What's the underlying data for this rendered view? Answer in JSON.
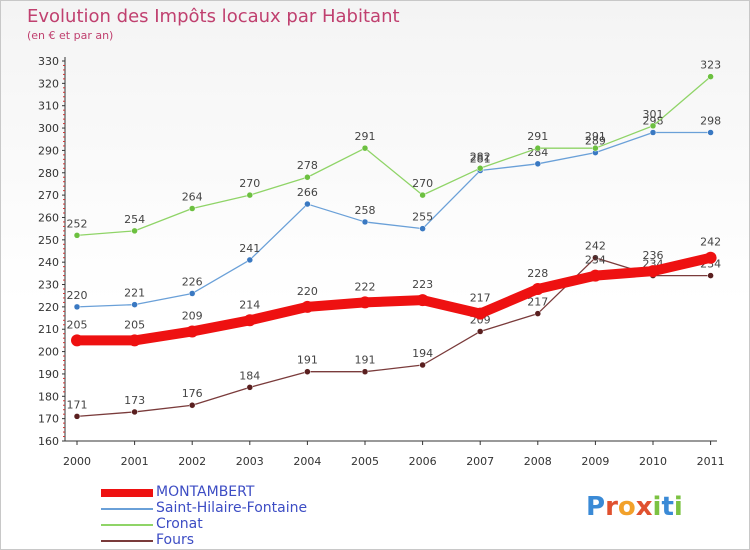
{
  "header": {
    "title": "Evolution des Impôts locaux par Habitant",
    "subtitle": "(en € et par an)"
  },
  "logo": {
    "text": "Proxiti",
    "letters": [
      "P",
      "r",
      "o",
      "x",
      "i",
      "t",
      "i"
    ],
    "colors": [
      "#3a8ad6",
      "#e0512f",
      "#f2a12a",
      "#e0512f",
      "#7cc242",
      "#3a8ad6",
      "#7cc242"
    ]
  },
  "chart_data": {
    "type": "line",
    "title": "Evolution des Impôts locaux par Habitant",
    "subtitle": "(en € et par an)",
    "xlabel": "",
    "ylabel": "",
    "categories": [
      "2000",
      "2001",
      "2002",
      "2003",
      "2004",
      "2005",
      "2006",
      "2007",
      "2008",
      "2009",
      "2010",
      "2011"
    ],
    "ylim": [
      160,
      330
    ],
    "yticks": [
      160,
      170,
      180,
      190,
      200,
      210,
      220,
      230,
      240,
      250,
      260,
      270,
      280,
      290,
      300,
      310,
      320,
      330
    ],
    "grid": false,
    "legend_position": "bottom-left",
    "series": [
      {
        "name": "MONTAMBERT",
        "color": "#ee1111",
        "thick": true,
        "values": [
          205,
          205,
          209,
          214,
          220,
          222,
          223,
          217,
          228,
          234,
          236,
          242
        ],
        "labels": [
          "205",
          "205",
          "209",
          "214",
          "220",
          "222",
          "223",
          "217",
          "228",
          "234",
          "236",
          "242"
        ]
      },
      {
        "name": "Saint-Hilaire-Fontaine",
        "color": "#6aa0d8",
        "marker": "#3a79c2",
        "thick": false,
        "values": [
          220,
          221,
          226,
          241,
          266,
          258,
          255,
          281,
          284,
          289,
          298,
          298
        ],
        "labels": [
          "220",
          "221",
          "226",
          "241",
          "266",
          "258",
          "255",
          "281",
          "284",
          "289",
          "298",
          "298"
        ]
      },
      {
        "name": "Cronat",
        "color": "#8fd467",
        "marker": "#6cc040",
        "thick": false,
        "values": [
          252,
          254,
          264,
          270,
          278,
          291,
          270,
          282,
          291,
          291,
          301,
          323
        ],
        "labels": [
          "252",
          "254",
          "264",
          "270",
          "278",
          "291",
          "270",
          "282",
          "291",
          "291",
          "301",
          "323"
        ]
      },
      {
        "name": "Fours",
        "color": "#7a3b3b",
        "marker": "#5a1f1f",
        "thick": false,
        "values": [
          171,
          173,
          176,
          184,
          191,
          191,
          194,
          209,
          217,
          242,
          234,
          234
        ],
        "labels": [
          "171",
          "173",
          "176",
          "184",
          "191",
          "191",
          "194",
          "209",
          "217",
          "242",
          "234",
          "234"
        ]
      }
    ]
  }
}
